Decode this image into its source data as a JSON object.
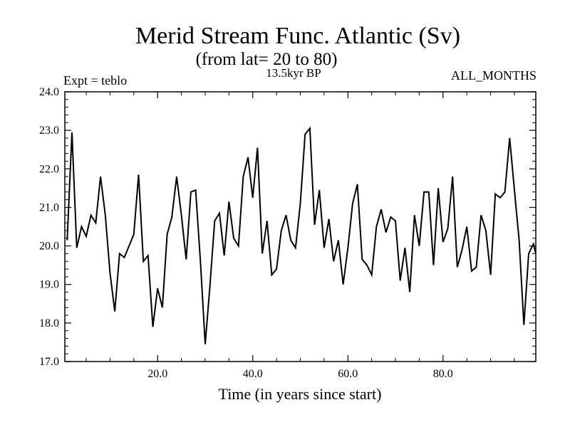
{
  "chart_data": {
    "type": "line",
    "title": "Merid Stream Func. Atlantic (Sv)",
    "subtitle": "(from lat= 20 to 80)",
    "left_note": "Expt = teblo",
    "center_note": "13.5kyr BP",
    "right_note": "ALL_MONTHS",
    "xlabel": "Time (in years since start)",
    "ylabel": "",
    "xlim": [
      0.5,
      99.5
    ],
    "ylim": [
      17.0,
      24.0
    ],
    "x_ticks": [
      20,
      40,
      60,
      80
    ],
    "x_tick_labels": [
      "20.0",
      "40.0",
      "60.0",
      "80.0"
    ],
    "y_ticks": [
      17,
      18,
      19,
      20,
      21,
      22,
      23,
      24
    ],
    "y_tick_labels": [
      "17.0",
      "18.0",
      "19.0",
      "20.0",
      "21.0",
      "22.0",
      "23.0",
      "24.0"
    ],
    "series": [
      {
        "name": "Merid Stream Func. Atlantic",
        "x": [
          1,
          2,
          3,
          4,
          5,
          6,
          7,
          8,
          9,
          10,
          11,
          12,
          13,
          14,
          15,
          16,
          17,
          18,
          19,
          20,
          21,
          22,
          23,
          24,
          25,
          26,
          27,
          28,
          29,
          30,
          31,
          32,
          33,
          34,
          35,
          36,
          37,
          38,
          39,
          40,
          41,
          42,
          43,
          44,
          45,
          46,
          47,
          48,
          49,
          50,
          51,
          52,
          53,
          54,
          55,
          56,
          57,
          58,
          59,
          60,
          61,
          62,
          63,
          64,
          65,
          66,
          67,
          68,
          69,
          70,
          71,
          72,
          73,
          74,
          75,
          76,
          77,
          78,
          79,
          80,
          81,
          82,
          83,
          84,
          85,
          86,
          87,
          88,
          89,
          90,
          91,
          92,
          93,
          94,
          95,
          96,
          97,
          98,
          99,
          100
        ],
        "values": [
          20.15,
          22.95,
          19.95,
          20.5,
          20.25,
          20.8,
          20.6,
          21.8,
          20.8,
          19.3,
          18.3,
          19.8,
          19.7,
          20.0,
          20.3,
          21.85,
          19.6,
          19.75,
          17.9,
          18.9,
          18.4,
          20.3,
          20.75,
          21.8,
          20.8,
          19.65,
          21.4,
          21.45,
          19.6,
          17.45,
          18.95,
          20.65,
          20.85,
          19.75,
          21.15,
          20.2,
          20.0,
          21.8,
          22.3,
          21.25,
          22.55,
          19.8,
          20.65,
          19.25,
          19.4,
          20.4,
          20.8,
          20.15,
          19.95,
          21.1,
          22.9,
          23.05,
          20.55,
          21.45,
          19.95,
          20.7,
          19.6,
          20.15,
          19.0,
          19.95,
          21.1,
          21.6,
          19.65,
          19.5,
          19.25,
          20.5,
          20.95,
          20.35,
          20.75,
          20.65,
          19.1,
          19.95,
          18.8,
          20.8,
          20.0,
          21.4,
          21.4,
          19.5,
          21.5,
          20.1,
          20.45,
          21.8,
          19.45,
          19.9,
          20.5,
          19.35,
          19.45,
          20.8,
          20.4,
          19.25,
          21.35,
          21.25,
          21.4,
          22.8,
          21.45,
          20.15,
          17.95,
          19.8,
          20.05,
          19.55
        ]
      }
    ]
  }
}
